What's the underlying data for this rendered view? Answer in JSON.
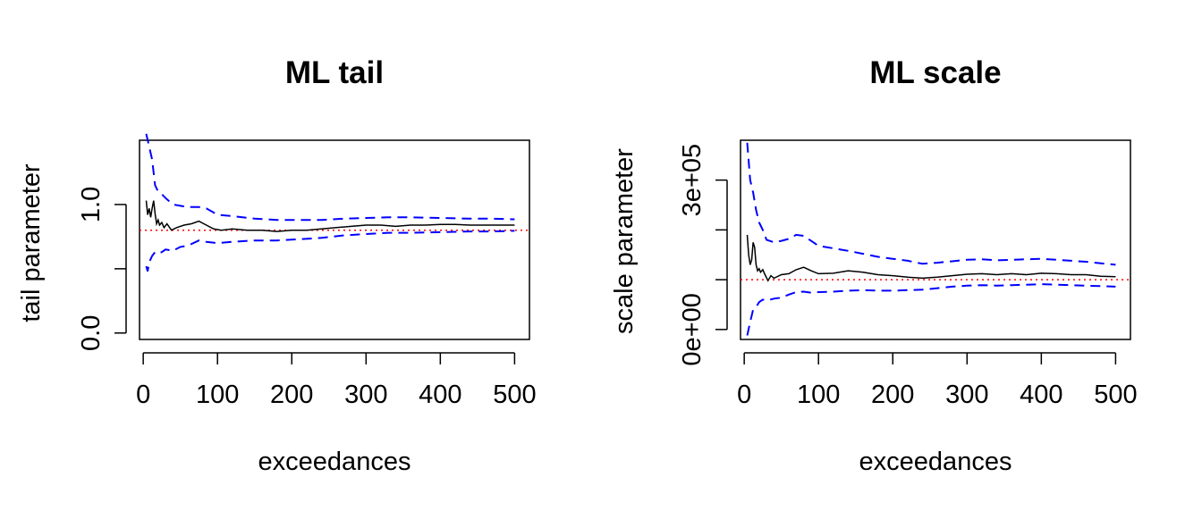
{
  "colors": {
    "estimate": "#000000",
    "confidence_band": "#0000ff",
    "reference": "#ff0000",
    "axes": "#000000"
  },
  "chart_data": [
    {
      "type": "line",
      "title": "ML tail",
      "xlabel": "exceedances",
      "ylabel": "tail parameter",
      "xlim": [
        -5,
        520
      ],
      "ylim": [
        -0.05,
        1.5
      ],
      "xticks": [
        0,
        100,
        200,
        300,
        400,
        500
      ],
      "xtick_labels": [
        "0",
        "100",
        "200",
        "300",
        "400",
        "500"
      ],
      "yticks": [
        0.0,
        0.5,
        1.0
      ],
      "ytick_labels": [
        "0.0",
        "",
        "1.0"
      ],
      "reference_line": {
        "y": 0.8,
        "style": "dotted"
      },
      "series": [
        {
          "name": "estimate",
          "style": "solid",
          "points": [
            [
              4,
              1.03
            ],
            [
              6,
              0.92
            ],
            [
              8,
              0.97
            ],
            [
              10,
              0.9
            ],
            [
              12,
              0.97
            ],
            [
              14,
              1.03
            ],
            [
              16,
              0.93
            ],
            [
              18,
              0.85
            ],
            [
              20,
              0.88
            ],
            [
              22,
              0.84
            ],
            [
              25,
              0.86
            ],
            [
              28,
              0.82
            ],
            [
              32,
              0.85
            ],
            [
              38,
              0.8
            ],
            [
              45,
              0.82
            ],
            [
              55,
              0.84
            ],
            [
              65,
              0.85
            ],
            [
              75,
              0.87
            ],
            [
              85,
              0.84
            ],
            [
              95,
              0.81
            ],
            [
              105,
              0.8
            ],
            [
              120,
              0.81
            ],
            [
              140,
              0.8
            ],
            [
              160,
              0.8
            ],
            [
              180,
              0.79
            ],
            [
              200,
              0.8
            ],
            [
              220,
              0.8
            ],
            [
              240,
              0.81
            ],
            [
              260,
              0.82
            ],
            [
              280,
              0.83
            ],
            [
              300,
              0.84
            ],
            [
              320,
              0.84
            ],
            [
              340,
              0.83
            ],
            [
              360,
              0.84
            ],
            [
              380,
              0.84
            ],
            [
              400,
              0.845
            ],
            [
              420,
              0.845
            ],
            [
              440,
              0.84
            ],
            [
              460,
              0.84
            ],
            [
              480,
              0.84
            ],
            [
              500,
              0.84
            ]
          ]
        },
        {
          "name": "upper",
          "style": "dashed",
          "points": [
            [
              4,
              1.55
            ],
            [
              8,
              1.45
            ],
            [
              12,
              1.35
            ],
            [
              16,
              1.15
            ],
            [
              20,
              1.1
            ],
            [
              25,
              1.08
            ],
            [
              30,
              1.05
            ],
            [
              40,
              1.0
            ],
            [
              50,
              0.99
            ],
            [
              60,
              0.98
            ],
            [
              75,
              0.98
            ],
            [
              85,
              0.97
            ],
            [
              100,
              0.92
            ],
            [
              120,
              0.91
            ],
            [
              150,
              0.89
            ],
            [
              180,
              0.88
            ],
            [
              210,
              0.88
            ],
            [
              240,
              0.88
            ],
            [
              270,
              0.89
            ],
            [
              300,
              0.895
            ],
            [
              330,
              0.9
            ],
            [
              360,
              0.9
            ],
            [
              400,
              0.895
            ],
            [
              440,
              0.89
            ],
            [
              470,
              0.89
            ],
            [
              500,
              0.885
            ]
          ]
        },
        {
          "name": "lower",
          "style": "dashed",
          "points": [
            [
              4,
              0.52
            ],
            [
              6,
              0.48
            ],
            [
              8,
              0.55
            ],
            [
              12,
              0.6
            ],
            [
              16,
              0.63
            ],
            [
              20,
              0.62
            ],
            [
              25,
              0.63
            ],
            [
              30,
              0.65
            ],
            [
              40,
              0.64
            ],
            [
              50,
              0.67
            ],
            [
              60,
              0.68
            ],
            [
              75,
              0.72
            ],
            [
              85,
              0.71
            ],
            [
              100,
              0.7
            ],
            [
              120,
              0.71
            ],
            [
              150,
              0.72
            ],
            [
              180,
              0.72
            ],
            [
              210,
              0.73
            ],
            [
              240,
              0.74
            ],
            [
              270,
              0.76
            ],
            [
              300,
              0.77
            ],
            [
              330,
              0.78
            ],
            [
              360,
              0.78
            ],
            [
              400,
              0.785
            ],
            [
              440,
              0.79
            ],
            [
              470,
              0.79
            ],
            [
              500,
              0.795
            ]
          ]
        }
      ]
    },
    {
      "type": "line",
      "title": "ML scale",
      "xlabel": "exceedances",
      "ylabel": "scale parameter",
      "xlim": [
        -5,
        520
      ],
      "ylim": [
        -20000,
        380000
      ],
      "xticks": [
        0,
        100,
        200,
        300,
        400,
        500
      ],
      "xtick_labels": [
        "0",
        "100",
        "200",
        "300",
        "400",
        "500"
      ],
      "yticks": [
        0,
        100000,
        200000,
        300000
      ],
      "ytick_labels": [
        "0e+00",
        "",
        "",
        "3e+05"
      ],
      "reference_line": {
        "y": 100000,
        "style": "dotted"
      },
      "series": [
        {
          "name": "estimate",
          "style": "solid",
          "points": [
            [
              4,
              190000
            ],
            [
              6,
              150000
            ],
            [
              8,
              130000
            ],
            [
              10,
              140000
            ],
            [
              12,
              175000
            ],
            [
              14,
              165000
            ],
            [
              16,
              130000
            ],
            [
              18,
              118000
            ],
            [
              20,
              122000
            ],
            [
              22,
              115000
            ],
            [
              25,
              120000
            ],
            [
              28,
              110000
            ],
            [
              32,
              98000
            ],
            [
              36,
              108000
            ],
            [
              40,
              103000
            ],
            [
              50,
              110000
            ],
            [
              60,
              112000
            ],
            [
              70,
              120000
            ],
            [
              80,
              125000
            ],
            [
              90,
              118000
            ],
            [
              100,
              112000
            ],
            [
              120,
              113000
            ],
            [
              140,
              118000
            ],
            [
              160,
              115000
            ],
            [
              180,
              110000
            ],
            [
              200,
              108000
            ],
            [
              220,
              105000
            ],
            [
              240,
              103000
            ],
            [
              260,
              105000
            ],
            [
              280,
              108000
            ],
            [
              300,
              111000
            ],
            [
              320,
              112000
            ],
            [
              340,
              110000
            ],
            [
              360,
              112000
            ],
            [
              380,
              110000
            ],
            [
              400,
              113000
            ],
            [
              420,
              112000
            ],
            [
              440,
              110000
            ],
            [
              460,
              110000
            ],
            [
              480,
              107000
            ],
            [
              500,
              106000
            ]
          ]
        },
        {
          "name": "upper",
          "style": "dashed",
          "points": [
            [
              4,
              375000
            ],
            [
              8,
              300000
            ],
            [
              12,
              275000
            ],
            [
              16,
              240000
            ],
            [
              20,
              215000
            ],
            [
              25,
              200000
            ],
            [
              30,
              180000
            ],
            [
              40,
              175000
            ],
            [
              50,
              178000
            ],
            [
              60,
              182000
            ],
            [
              70,
              190000
            ],
            [
              80,
              188000
            ],
            [
              90,
              178000
            ],
            [
              100,
              168000
            ],
            [
              120,
              163000
            ],
            [
              140,
              158000
            ],
            [
              160,
              152000
            ],
            [
              180,
              146000
            ],
            [
              200,
              142000
            ],
            [
              220,
              138000
            ],
            [
              240,
              132000
            ],
            [
              260,
              134000
            ],
            [
              280,
              137000
            ],
            [
              300,
              140000
            ],
            [
              320,
              141000
            ],
            [
              340,
              139000
            ],
            [
              360,
              140000
            ],
            [
              380,
              141000
            ],
            [
              400,
              142000
            ],
            [
              420,
              140000
            ],
            [
              440,
              138000
            ],
            [
              460,
              136000
            ],
            [
              480,
              133000
            ],
            [
              500,
              130000
            ]
          ]
        },
        {
          "name": "lower",
          "style": "dashed",
          "points": [
            [
              4,
              -12000
            ],
            [
              8,
              15000
            ],
            [
              12,
              40000
            ],
            [
              16,
              45000
            ],
            [
              20,
              55000
            ],
            [
              25,
              60000
            ],
            [
              30,
              58000
            ],
            [
              40,
              62000
            ],
            [
              50,
              64000
            ],
            [
              60,
              70000
            ],
            [
              70,
              75000
            ],
            [
              80,
              76000
            ],
            [
              90,
              74000
            ],
            [
              100,
              75000
            ],
            [
              120,
              76000
            ],
            [
              140,
              78000
            ],
            [
              160,
              79000
            ],
            [
              180,
              78000
            ],
            [
              200,
              78000
            ],
            [
              220,
              79000
            ],
            [
              240,
              80000
            ],
            [
              260,
              83000
            ],
            [
              280,
              86000
            ],
            [
              300,
              88000
            ],
            [
              320,
              89000
            ],
            [
              340,
              88000
            ],
            [
              360,
              89000
            ],
            [
              380,
              90000
            ],
            [
              400,
              91000
            ],
            [
              420,
              90000
            ],
            [
              440,
              89000
            ],
            [
              460,
              88000
            ],
            [
              480,
              87000
            ],
            [
              500,
              86000
            ]
          ]
        }
      ]
    }
  ]
}
